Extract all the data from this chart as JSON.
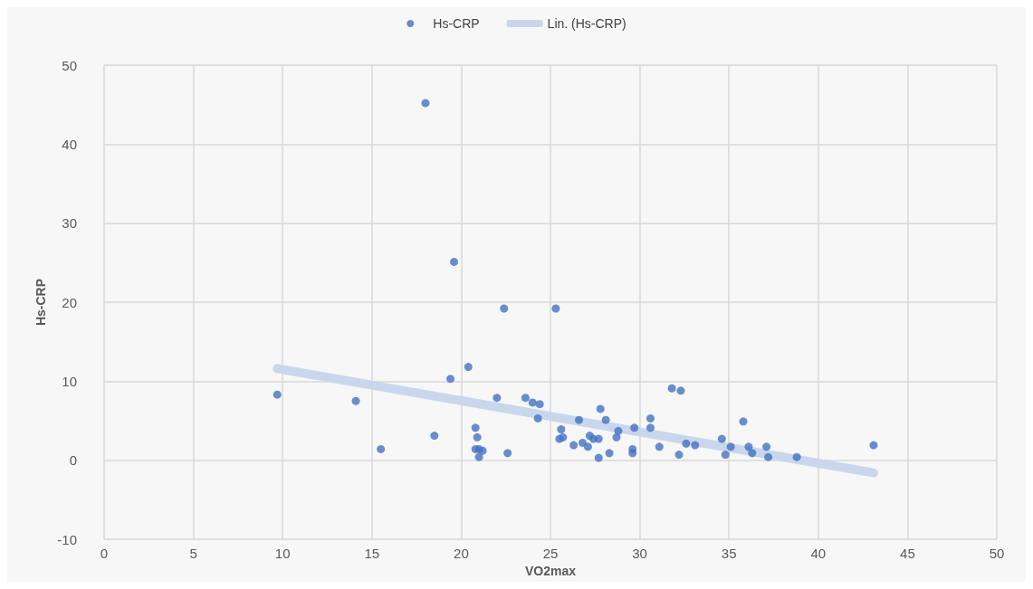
{
  "chart_data": {
    "type": "scatter",
    "xlabel": "VO2max",
    "ylabel": "Hs-CRP",
    "xlim": [
      0,
      50
    ],
    "xticks": [
      0,
      5,
      10,
      15,
      20,
      25,
      30,
      35,
      40,
      45,
      50
    ],
    "ylim": [
      -10,
      50
    ],
    "yticks": [
      -10,
      0,
      10,
      20,
      30,
      40,
      50
    ],
    "grid": true,
    "legend": "top",
    "series": [
      {
        "name": "Hs-CRP",
        "color": "#4472c4",
        "marker": "circle",
        "x": [
          9.7,
          14.1,
          15.5,
          18.0,
          18.5,
          19.4,
          19.6,
          20.4,
          20.8,
          20.9,
          20.8,
          21.0,
          21.2,
          21.0,
          22.6,
          22.0,
          22.4,
          23.6,
          24.0,
          24.4,
          24.3,
          25.3,
          25.6,
          25.5,
          25.7,
          26.3,
          26.6,
          26.8,
          27.1,
          27.2,
          27.4,
          27.7,
          27.7,
          27.8,
          28.1,
          28.3,
          28.7,
          28.8,
          29.6,
          29.6,
          29.7,
          30.6,
          30.6,
          31.1,
          31.8,
          32.2,
          32.3,
          32.6,
          33.1,
          34.6,
          34.8,
          35.1,
          35.8,
          36.1,
          36.3,
          37.1,
          37.2,
          38.8,
          43.1
        ],
        "values": [
          8.3,
          7.5,
          1.4,
          45.2,
          3.1,
          10.3,
          25.1,
          11.8,
          4.1,
          2.9,
          1.4,
          1.4,
          1.2,
          0.4,
          0.9,
          7.9,
          19.2,
          7.9,
          7.3,
          7.1,
          5.3,
          19.2,
          3.9,
          2.7,
          2.9,
          1.9,
          5.1,
          2.2,
          1.7,
          3.1,
          2.7,
          2.7,
          0.3,
          6.5,
          5.1,
          0.9,
          2.9,
          3.7,
          1.4,
          0.9,
          4.1,
          5.3,
          4.1,
          1.7,
          9.1,
          0.7,
          8.8,
          2.1,
          1.9,
          2.7,
          0.7,
          1.7,
          4.9,
          1.7,
          0.9,
          1.7,
          0.4,
          0.4,
          1.9
        ]
      },
      {
        "name": "Lin. (Hs-CRP)",
        "type": "line",
        "marker": "none",
        "color": "#c9d7ec",
        "x": [
          9.7,
          43.1
        ],
        "values": [
          11.6,
          -1.6
        ]
      }
    ]
  }
}
